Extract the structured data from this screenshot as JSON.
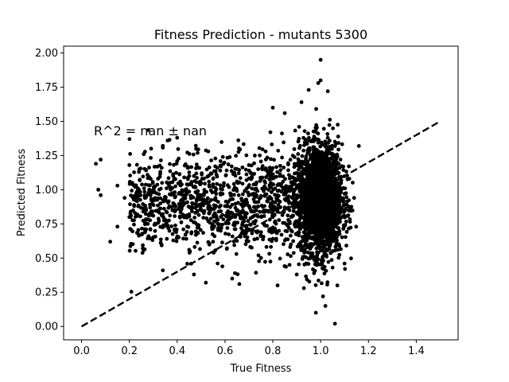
{
  "chart_data": {
    "type": "scatter",
    "title": "Fitness Prediction - mutants 5300",
    "xlabel": "True Fitness",
    "ylabel": "Predicted Fitness",
    "xlim": [
      -0.075,
      1.575
    ],
    "ylim": [
      -0.098,
      2.05
    ],
    "xticks": [
      0.0,
      0.2,
      0.4,
      0.6,
      0.8,
      1.0,
      1.2,
      1.4
    ],
    "xtick_labels": [
      "0.0",
      "0.2",
      "0.4",
      "0.6",
      "0.8",
      "1.0",
      "1.2",
      "1.4"
    ],
    "yticks": [
      0.0,
      0.25,
      0.5,
      0.75,
      1.0,
      1.25,
      1.5,
      1.75,
      2.0
    ],
    "ytick_labels": [
      "0.00",
      "0.25",
      "0.50",
      "0.75",
      "1.00",
      "1.25",
      "1.50",
      "1.75",
      "2.00"
    ],
    "annotation": "R^2 = nan ± nan",
    "reference_line": {
      "x": [
        0.0,
        1.5
      ],
      "y": [
        0.0,
        1.5
      ],
      "style": "dashed"
    },
    "grid": false,
    "color": "#000000",
    "points": [
      [
        0.06,
        1.19
      ],
      [
        0.08,
        1.22
      ],
      [
        0.07,
        1.0
      ],
      [
        0.08,
        0.96
      ],
      [
        0.12,
        0.62
      ],
      [
        0.15,
        0.73
      ],
      [
        0.15,
        1.03
      ],
      [
        0.18,
        0.94
      ],
      [
        0.2,
        0.8
      ],
      [
        0.2,
        1.18
      ],
      [
        0.22,
        0.88
      ],
      [
        0.24,
        1.13
      ],
      [
        0.26,
        1.26
      ],
      [
        0.28,
        0.66
      ],
      [
        0.3,
        0.92
      ],
      [
        0.32,
        1.08
      ],
      [
        0.34,
        0.41
      ],
      [
        0.36,
        1.36
      ],
      [
        0.38,
        0.85
      ],
      [
        0.4,
        1.38
      ],
      [
        0.4,
        1.21
      ],
      [
        0.42,
        0.98
      ],
      [
        0.45,
        0.56
      ],
      [
        0.47,
        0.38
      ],
      [
        0.5,
        1.05
      ],
      [
        0.52,
        0.32
      ],
      [
        0.53,
        1.28
      ],
      [
        0.55,
        0.62
      ],
      [
        0.58,
        1.14
      ],
      [
        0.6,
        0.88
      ],
      [
        0.63,
        0.35
      ],
      [
        0.65,
        1.06
      ],
      [
        0.66,
        0.31
      ],
      [
        0.7,
        1.18
      ],
      [
        0.72,
        0.93
      ],
      [
        0.74,
        0.52
      ],
      [
        0.77,
        1.28
      ],
      [
        0.79,
        1.42
      ],
      [
        0.8,
        1.6
      ],
      [
        0.82,
        0.3
      ],
      [
        0.85,
        1.56
      ],
      [
        0.87,
        0.45
      ],
      [
        0.9,
        0.38
      ],
      [
        0.91,
        1.46
      ],
      [
        0.92,
        1.64
      ],
      [
        0.93,
        0.28
      ],
      [
        0.95,
        1.73
      ],
      [
        0.98,
        0.1
      ],
      [
        0.99,
        1.78
      ],
      [
        1.0,
        1.95
      ],
      [
        1.0,
        1.8
      ],
      [
        1.01,
        0.22
      ],
      [
        1.02,
        0.15
      ],
      [
        1.03,
        1.72
      ],
      [
        1.06,
        0.02
      ],
      [
        1.07,
        0.3
      ],
      [
        1.1,
        0.46
      ],
      [
        1.12,
        1.08
      ],
      [
        1.14,
        0.94
      ],
      [
        1.16,
        1.32
      ]
    ],
    "cluster_points": [
      [
        0.22,
        0.95
      ],
      [
        0.24,
        1.0
      ],
      [
        0.27,
        0.85
      ],
      [
        0.3,
        0.98
      ],
      [
        0.33,
        0.9
      ],
      [
        0.35,
        0.78
      ],
      [
        0.37,
        1.02
      ],
      [
        0.39,
        0.7
      ],
      [
        0.41,
        0.88
      ],
      [
        0.43,
        0.95
      ],
      [
        0.45,
        0.82
      ],
      [
        0.47,
        1.1
      ],
      [
        0.49,
        0.74
      ],
      [
        0.51,
        0.93
      ],
      [
        0.53,
        0.86
      ],
      [
        0.55,
        1.04
      ],
      [
        0.57,
        0.78
      ],
      [
        0.59,
        0.97
      ],
      [
        0.61,
        0.72
      ],
      [
        0.63,
        0.89
      ],
      [
        0.65,
        0.99
      ],
      [
        0.67,
        0.8
      ],
      [
        0.69,
        1.07
      ],
      [
        0.71,
        0.84
      ],
      [
        0.73,
        0.96
      ],
      [
        0.75,
        0.66
      ],
      [
        0.77,
        1.01
      ],
      [
        0.79,
        0.9
      ],
      [
        0.81,
        0.77
      ],
      [
        0.83,
        1.1
      ],
      [
        0.85,
        0.93
      ],
      [
        0.87,
        0.85
      ],
      [
        0.89,
        1.0
      ],
      [
        0.91,
        0.88
      ],
      [
        0.93,
        0.95
      ]
    ]
  }
}
